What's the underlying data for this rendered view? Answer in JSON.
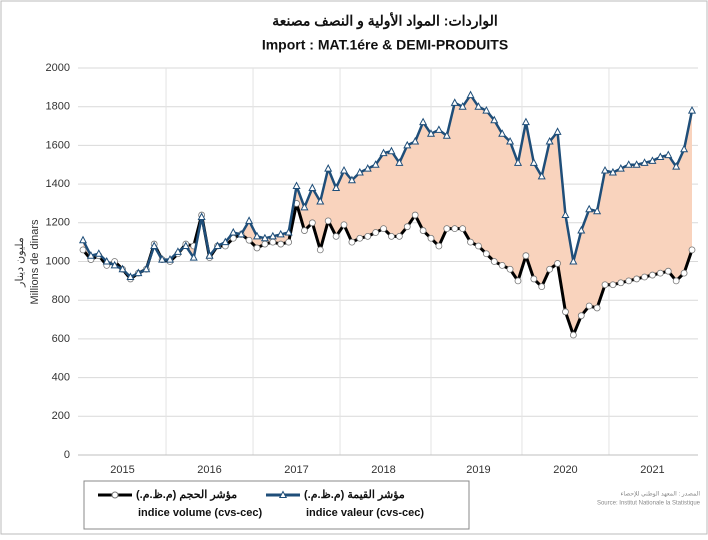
{
  "chart_data": {
    "type": "line",
    "title": "الواردات: المواد الأولية و النصف مصنعة",
    "subtitle": "Import : MAT.1ére & DEMI-PRODUITS",
    "y_label": "Millions de dinars",
    "y_label_ar": "مليون دينار",
    "source_ar": "المصدر : المعهد الوطني للإحصاء",
    "source": "Source: Institut Nationale la Statistique",
    "categories": [
      null,
      null,
      null,
      null,
      null,
      "2015",
      null,
      null,
      null,
      null,
      null,
      null,
      null,
      null,
      null,
      null,
      "2016",
      null,
      null,
      null,
      null,
      null,
      null,
      null,
      null,
      null,
      null,
      "2017",
      null,
      null,
      null,
      null,
      null,
      null,
      null,
      null,
      null,
      null,
      "2018",
      null,
      null,
      null,
      null,
      null,
      null,
      null,
      null,
      null,
      null,
      null,
      "2019",
      null,
      null,
      null,
      null,
      null,
      null,
      null,
      null,
      null,
      null,
      "2020",
      null,
      null,
      null,
      null,
      null,
      null,
      null,
      null,
      null,
      null,
      "2021",
      null,
      null,
      null,
      null,
      null
    ],
    "series": [
      {
        "name": "indice volume (cvs-cec)",
        "name_ar": "مؤشر الحجم (م.ظ.م.)",
        "color": "#000000",
        "marker": "circle",
        "values": [
          1060,
          1010,
          1030,
          980,
          1000,
          960,
          910,
          940,
          960,
          1090,
          1010,
          1000,
          1040,
          1090,
          1080,
          1240,
          1020,
          1080,
          1080,
          1120,
          1140,
          1110,
          1070,
          1090,
          1100,
          1090,
          1100,
          1300,
          1160,
          1200,
          1060,
          1210,
          1130,
          1190,
          1100,
          1120,
          1130,
          1150,
          1170,
          1130,
          1130,
          1180,
          1240,
          1160,
          1120,
          1080,
          1170,
          1170,
          1170,
          1100,
          1080,
          1040,
          1000,
          980,
          960,
          900,
          1030,
          910,
          870,
          960,
          990,
          740,
          620,
          720,
          770,
          760,
          880,
          880,
          890,
          900,
          910,
          920,
          930,
          940,
          950,
          900,
          940,
          1060
        ]
      },
      {
        "name": "indice valeur (cvs-cec)",
        "name_ar": "مؤشر القيمة (م.ظ.م.)",
        "color": "#1f4e79",
        "marker": "triangle",
        "values": [
          1110,
          1030,
          1040,
          1000,
          980,
          960,
          920,
          940,
          960,
          1080,
          1010,
          1010,
          1050,
          1080,
          1020,
          1230,
          1030,
          1080,
          1100,
          1150,
          1140,
          1210,
          1130,
          1120,
          1130,
          1140,
          1150,
          1390,
          1280,
          1380,
          1310,
          1480,
          1380,
          1470,
          1420,
          1460,
          1480,
          1500,
          1560,
          1570,
          1510,
          1600,
          1620,
          1720,
          1660,
          1680,
          1650,
          1820,
          1800,
          1860,
          1800,
          1780,
          1730,
          1660,
          1620,
          1510,
          1720,
          1510,
          1440,
          1620,
          1670,
          1240,
          1000,
          1160,
          1270,
          1260,
          1470,
          1460,
          1480,
          1500,
          1500,
          1510,
          1520,
          1540,
          1550,
          1490,
          1580,
          1780
        ]
      }
    ],
    "fill_between_color": "#f9d3bd",
    "ylim": [
      0,
      2000
    ],
    "yticks": [
      0,
      200,
      400,
      600,
      800,
      1000,
      1200,
      1400,
      1600,
      1800,
      2000
    ],
    "grid": true
  }
}
